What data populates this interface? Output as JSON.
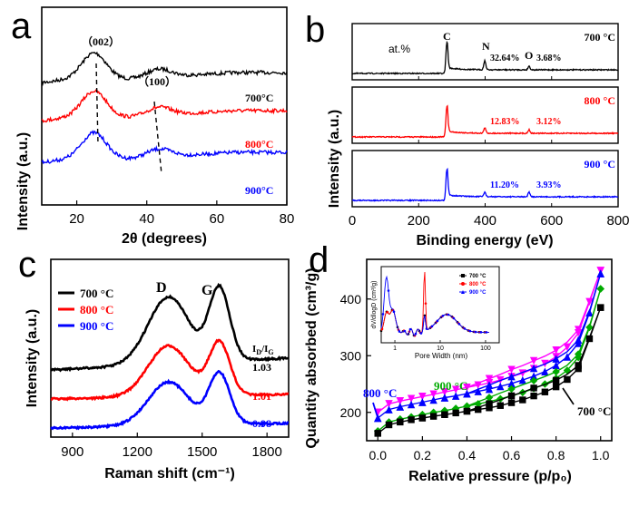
{
  "colors": {
    "700": "#000000",
    "800": "#ff0000",
    "900": "#0000ff",
    "pink": "#ff00ff",
    "green": "#00aa00"
  },
  "panels": {
    "a": {
      "letter": "a",
      "ylabel": "Intensity (a.u.)",
      "xlabel": "2θ (degrees)",
      "ann002": "（002）",
      "ann100": "（100）",
      "labels": [
        "700°C",
        "800°C",
        "900°C"
      ]
    },
    "b": {
      "letter": "b",
      "ylabel": "Intensity (a.u.)",
      "xlabel": "Binding energy (eV)",
      "at": "at.%",
      "c_label": "C",
      "n_label": "N",
      "o_label": "O",
      "temps": [
        "700 °C",
        "800 °C",
        "900 °C"
      ],
      "n_pct": [
        "32.64%",
        "12.83%",
        "11.20%"
      ],
      "o_pct": [
        "3.68%",
        "3.12%",
        "3.93%"
      ]
    },
    "c": {
      "letter": "c",
      "ylabel": "Intensity (a.u.)",
      "xlabel": "Raman shift (cm⁻¹)",
      "d_label": "D",
      "g_label": "G",
      "ratio_label": "I_D/I_G",
      "legend": [
        "700 °C",
        "800 °C",
        "900 °C"
      ],
      "ratios": [
        "1.03",
        "1.01",
        "0.98"
      ]
    },
    "d": {
      "letter": "d",
      "ylabel": "Quantity absorbed (cm³/g)",
      "xlabel": "Relative pressure (p/p₀)",
      "labels": [
        "800 °C",
        "900 °C",
        "700 °C"
      ],
      "inset_ylabel": "dV/dlogD (cm³/g)",
      "inset_xlabel": "Pore Width (nm)",
      "inset_legend": [
        "700 °C",
        "800 °C",
        "900 °C"
      ]
    }
  },
  "chart_data": [
    {
      "type": "line",
      "panel": "a",
      "xlabel": "2θ (degrees)",
      "ylabel": "Intensity (a.u.)",
      "xlim": [
        10,
        80
      ],
      "xticks": [
        20,
        40,
        60,
        80
      ],
      "series": [
        {
          "name": "700°C",
          "peaks": [
            25,
            44
          ]
        },
        {
          "name": "800°C",
          "peaks": [
            25,
            44
          ]
        },
        {
          "name": "900°C",
          "peaks": [
            25,
            44
          ]
        }
      ]
    },
    {
      "type": "line",
      "panel": "b",
      "xlabel": "Binding energy (eV)",
      "ylabel": "Intensity (a.u.)",
      "xlim": [
        0,
        800
      ],
      "xticks": [
        0,
        200,
        400,
        600,
        800
      ],
      "peaks": {
        "C": 285,
        "N": 399,
        "O": 532
      },
      "series": [
        {
          "name": "700 °C",
          "N": 32.64,
          "O": 3.68
        },
        {
          "name": "800 °C",
          "N": 12.83,
          "O": 3.12
        },
        {
          "name": "900 °C",
          "N": 11.2,
          "O": 3.93
        }
      ]
    },
    {
      "type": "line",
      "panel": "c",
      "xlabel": "Raman shift (cm⁻¹)",
      "ylabel": "Intensity (a.u.)",
      "xlim": [
        800,
        1900
      ],
      "xticks": [
        900,
        1200,
        1500,
        1800
      ],
      "peaks": {
        "D": 1345,
        "G": 1580
      },
      "series": [
        {
          "name": "700 °C",
          "ID_IG": 1.03
        },
        {
          "name": "800 °C",
          "ID_IG": 1.01
        },
        {
          "name": "900 °C",
          "ID_IG": 0.98
        }
      ]
    },
    {
      "type": "scatter",
      "panel": "d",
      "xlabel": "Relative pressure (p/p₀)",
      "ylabel": "Quantity absorbed (cm³/g)",
      "xlim": [
        -0.05,
        1.05
      ],
      "ylim": [
        150,
        470
      ],
      "xticks": [
        0.0,
        0.2,
        0.4,
        0.6,
        0.8,
        1.0
      ],
      "yticks": [
        200,
        300,
        400
      ],
      "x": [
        0.0,
        0.05,
        0.1,
        0.15,
        0.2,
        0.25,
        0.3,
        0.35,
        0.4,
        0.45,
        0.5,
        0.55,
        0.6,
        0.65,
        0.7,
        0.75,
        0.8,
        0.85,
        0.9,
        0.95,
        1.0
      ],
      "series": [
        {
          "name": "700 °C",
          "adsorption": [
            163,
            178,
            183,
            187,
            190,
            193,
            196,
            199,
            202,
            205,
            208,
            212,
            217,
            222,
            229,
            236,
            245,
            258,
            277,
            330,
            385
          ]
        },
        {
          "name": "800 °C",
          "adsorption": [
            190,
            205,
            210,
            214,
            218,
            222,
            226,
            229,
            233,
            237,
            241,
            246,
            251,
            257,
            264,
            272,
            283,
            298,
            322,
            376,
            445
          ]
        },
        {
          "name": "900 °C",
          "adsorption": [
            167,
            183,
            188,
            192,
            196,
            200,
            203,
            207,
            211,
            215,
            219,
            224,
            229,
            235,
            242,
            250,
            260,
            274,
            297,
            350,
            418
          ]
        },
        {
          "name": "pink",
          "adsorption": [
            200,
            215,
            220,
            224,
            228,
            232,
            236,
            240,
            244,
            248,
            252,
            257,
            263,
            269,
            277,
            286,
            298,
            315,
            340,
            395,
            450
          ]
        }
      ]
    },
    {
      "type": "line",
      "panel": "d-inset",
      "xlabel": "Pore Width (nm)",
      "ylabel": "dV/dlogD (cm³/g)",
      "xscale": "log",
      "xlim": [
        0.5,
        200
      ],
      "xticks": [
        1,
        10,
        100
      ],
      "peaks_nm": [
        0.65,
        4.5,
        14
      ]
    }
  ]
}
